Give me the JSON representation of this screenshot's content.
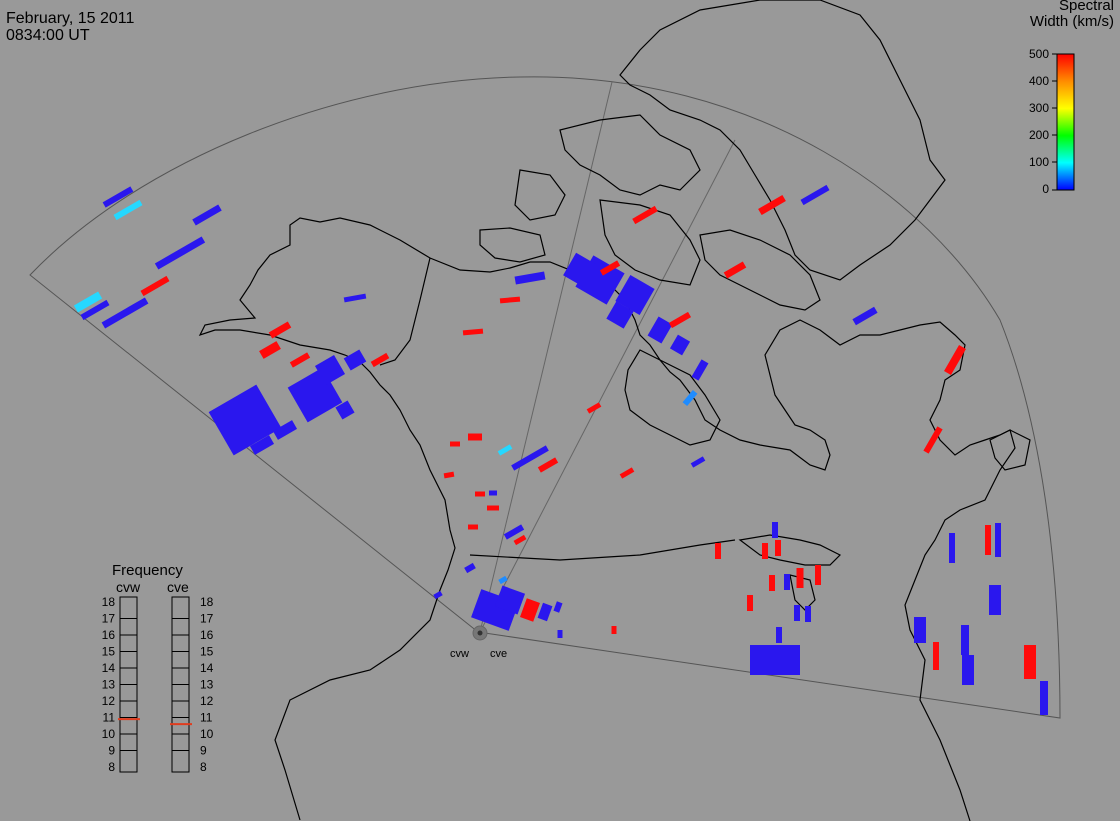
{
  "header": {
    "date": "February, 15 2011",
    "time": "0834:00 UT"
  },
  "colorbar": {
    "title_line1": "Spectral",
    "title_line2": "Width (km/s)",
    "ticks": [
      "500",
      "400",
      "300",
      "200",
      "100",
      "0"
    ],
    "colors": [
      "#ff0000",
      "#ff8c00",
      "#ffff00",
      "#00ff00",
      "#00ffff",
      "#0000ff"
    ]
  },
  "frequency_panel": {
    "title": "Frequency",
    "radar_left": "cvw",
    "radar_right": "cve",
    "ticks": [
      "18",
      "17",
      "16",
      "15",
      "14",
      "13",
      "12",
      "11",
      "10",
      "9",
      "8"
    ],
    "marker_cvw_mhz": 10.9,
    "marker_cve_mhz": 10.6,
    "marker_color": "#e03c1e"
  },
  "radars": [
    {
      "label": "cvw"
    },
    {
      "label": "cve"
    }
  ],
  "scatter_colors": {
    "low_width": "#2a17ee",
    "high_width": "#ff0a0a",
    "mid_width": "#1f8cff",
    "cyan": "#25d8ff"
  }
}
